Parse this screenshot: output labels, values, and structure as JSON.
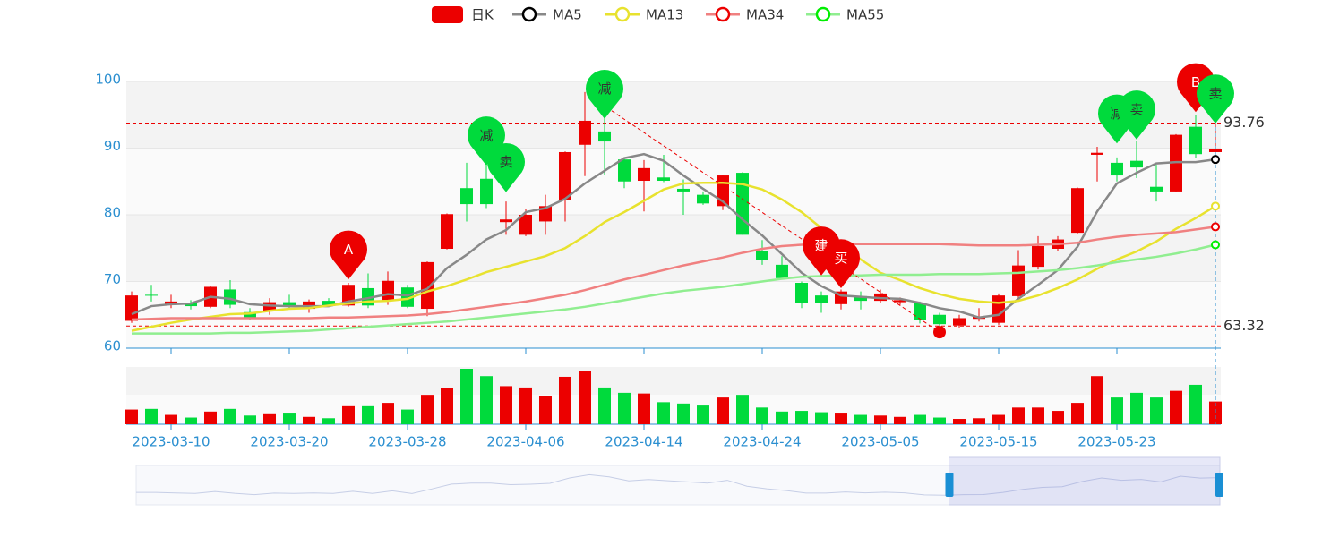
{
  "chart_data": {
    "type": "candlestick",
    "categories": [
      null,
      null,
      "2023-03-10",
      null,
      null,
      null,
      null,
      null,
      "2023-03-20",
      null,
      null,
      null,
      null,
      null,
      "2023-03-28",
      null,
      null,
      null,
      null,
      null,
      "2023-04-06",
      null,
      null,
      null,
      null,
      null,
      "2023-04-14",
      null,
      null,
      null,
      null,
      null,
      "2023-04-24",
      null,
      null,
      null,
      null,
      null,
      "2023-05-05",
      null,
      null,
      null,
      null,
      null,
      "2023-05-15",
      null,
      null,
      null,
      null,
      null,
      "2023-05-23",
      null,
      null,
      null,
      null,
      null
    ],
    "series": [
      {
        "name": "日K",
        "up_color": "#ec0000",
        "down_color": "#00da3c",
        "open": [
          64.1,
          68,
          66.5,
          66.8,
          66.2,
          68.8,
          65.4,
          65.6,
          66.9,
          65.9,
          67.1,
          66.4,
          69,
          67.2,
          69.1,
          65.9,
          74.9,
          84,
          85.4,
          78.9,
          77,
          79,
          82.2,
          90.5,
          92.5,
          88.3,
          85.1,
          85.6,
          83.9,
          83,
          81.3,
          86.3,
          74.6,
          72.5,
          69.8,
          67.9,
          66.6,
          67.8,
          67.1,
          66.9,
          66.8,
          65,
          63.4,
          64.4,
          63.8,
          67.8,
          72.2,
          74.9,
          77.3,
          89,
          87.8,
          88.1,
          84.2,
          83.5,
          93.2,
          89.4
        ],
        "close": [
          67.9,
          67.9,
          67,
          66.3,
          69.2,
          66.5,
          64.5,
          66.9,
          66.4,
          67,
          66.4,
          69.5,
          66.4,
          70.1,
          66.2,
          72.9,
          80.1,
          81.6,
          81.6,
          79.3,
          80,
          81.3,
          89.4,
          94.1,
          91,
          85,
          87,
          85.1,
          83.5,
          81.7,
          85.9,
          77,
          73.2,
          70.5,
          66.8,
          66.8,
          68.5,
          67.1,
          68.2,
          67.2,
          64.2,
          63.6,
          64.5,
          64.7,
          67.9,
          72.4,
          75.3,
          76.3,
          84,
          89.3,
          85.9,
          87.1,
          83.5,
          92,
          89.1,
          89.8
        ],
        "high": [
          68.5,
          69.5,
          68,
          67.2,
          69.3,
          70.2,
          66,
          67.5,
          68,
          67.3,
          67.5,
          69.8,
          71.2,
          71.5,
          69.5,
          73,
          80.2,
          87.8,
          89,
          82,
          80.8,
          83,
          89.5,
          98.4,
          95,
          88.5,
          88.2,
          89,
          85.3,
          83.5,
          86,
          86.4,
          76.2,
          73.8,
          70,
          68.5,
          68.8,
          68.5,
          68.8,
          67.6,
          67,
          65.3,
          65,
          66,
          68.2,
          74.7,
          76.8,
          76.8,
          84.1,
          90.2,
          88.6,
          91,
          87.5,
          92.1,
          95,
          99.2
        ],
        "low": [
          63.8,
          67,
          66,
          65.8,
          66,
          66,
          64.3,
          65,
          66,
          65.3,
          66.2,
          66.2,
          66,
          66.5,
          66,
          64.8,
          74.8,
          79,
          81,
          77,
          76.8,
          77,
          79,
          85.8,
          86,
          84,
          80.5,
          84.9,
          80,
          81.5,
          80.7,
          77,
          72.5,
          70.3,
          66,
          65.3,
          65.8,
          65.8,
          66.8,
          66.5,
          63.7,
          62.4,
          63.1,
          64,
          63.5,
          67.5,
          71.8,
          74.5,
          77.2,
          85,
          85,
          85.5,
          82,
          83.4,
          88.5,
          88.8
        ]
      },
      {
        "name": "MA5",
        "color": "#888888",
        "legend_color": "#000000",
        "values": [
          65.1,
          66.3,
          66.6,
          66.7,
          67.7,
          67.4,
          66.6,
          66.4,
          66.3,
          66.3,
          66.3,
          67.0,
          67.5,
          68.1,
          67.9,
          68.9,
          72.0,
          74.0,
          76.3,
          77.7,
          80.4,
          81.0,
          82.4,
          84.7,
          86.6,
          88.5,
          89.1,
          88.1,
          85.9,
          83.9,
          82.0,
          79.3,
          76.9,
          74.1,
          71.3,
          69.3,
          67.9,
          67.7,
          67.5,
          67.4,
          66.8,
          66.0,
          65.5,
          64.6,
          65.0,
          67.4,
          69.5,
          71.7,
          75.2,
          80.5,
          84.7,
          86.3,
          87.7,
          87.9,
          87.9,
          88.3
        ]
      },
      {
        "name": "MA13",
        "color": "#e8e22e",
        "legend_color": "#e8e22e",
        "values": [
          62.6,
          63.2,
          63.8,
          64.3,
          64.7,
          65.1,
          65.2,
          65.6,
          65.9,
          66.0,
          66.4,
          66.7,
          67.0,
          67.1,
          67.4,
          68.5,
          69.3,
          70.3,
          71.4,
          72.2,
          73.0,
          73.8,
          75.0,
          76.8,
          78.9,
          80.4,
          82.1,
          83.8,
          84.7,
          84.8,
          84.8,
          84.6,
          83.8,
          82.3,
          80.4,
          78.0,
          75.6,
          73.3,
          71.3,
          70.2,
          69.0,
          68.1,
          67.4,
          67.0,
          66.8,
          67.1,
          67.9,
          69.0,
          70.3,
          71.9,
          73.3,
          74.5,
          76.0,
          77.9,
          79.5,
          81.3
        ]
      },
      {
        "name": "MA34",
        "color": "#f08080",
        "legend_color": "#ec0000",
        "values": [
          64.3,
          64.4,
          64.5,
          64.5,
          64.5,
          64.5,
          64.5,
          64.5,
          64.5,
          64.5,
          64.6,
          64.6,
          64.7,
          64.8,
          64.9,
          65.1,
          65.4,
          65.8,
          66.2,
          66.6,
          67.0,
          67.5,
          68.0,
          68.7,
          69.5,
          70.3,
          71.0,
          71.7,
          72.4,
          73.0,
          73.6,
          74.3,
          74.9,
          75.3,
          75.5,
          75.6,
          75.6,
          75.6,
          75.6,
          75.6,
          75.6,
          75.6,
          75.5,
          75.4,
          75.4,
          75.4,
          75.5,
          75.6,
          75.8,
          76.3,
          76.7,
          77.0,
          77.2,
          77.4,
          77.8,
          78.2
        ]
      },
      {
        "name": "MA55",
        "color": "#90ee90",
        "legend_color": "#00ee00",
        "values": [
          62.2,
          62.2,
          62.2,
          62.2,
          62.2,
          62.3,
          62.3,
          62.4,
          62.5,
          62.6,
          62.8,
          63.0,
          63.2,
          63.4,
          63.6,
          63.8,
          64.0,
          64.3,
          64.6,
          64.9,
          65.2,
          65.5,
          65.8,
          66.2,
          66.7,
          67.2,
          67.7,
          68.2,
          68.6,
          68.9,
          69.2,
          69.6,
          70.0,
          70.4,
          70.7,
          70.8,
          70.9,
          70.9,
          71.0,
          71.0,
          71.0,
          71.1,
          71.1,
          71.1,
          71.2,
          71.3,
          71.5,
          71.7,
          72.0,
          72.4,
          72.9,
          73.3,
          73.7,
          74.2,
          74.8,
          75.5
        ]
      }
    ],
    "volume": [
      22,
      23,
      14,
      10,
      19,
      23,
      13,
      15,
      16,
      11,
      9,
      27,
      27,
      32,
      22,
      44,
      54,
      83,
      72,
      57,
      55,
      42,
      71,
      80,
      55,
      47,
      46,
      33,
      31,
      28,
      40,
      44,
      25,
      19,
      20,
      18,
      16,
      14,
      13,
      11,
      14,
      10,
      8,
      9,
      14,
      25,
      25,
      20,
      32,
      72,
      40,
      47,
      40,
      50,
      59,
      34
    ],
    "ylim": [
      60,
      100
    ],
    "yticks": [
      60,
      70,
      80,
      90,
      100
    ],
    "mark_lines": [
      93.76,
      63.32
    ],
    "markers": [
      {
        "label": "A",
        "i": 11,
        "value": 70.3,
        "color": "#ec0000"
      },
      {
        "label": "减",
        "i": 18,
        "value": 87.4,
        "color": "#00da3c"
      },
      {
        "label": "卖",
        "i": 19,
        "value": 83.4,
        "color": "#00da3c"
      },
      {
        "label": "减",
        "i": 24,
        "value": 94.4,
        "color": "#00da3c"
      },
      {
        "label": "建",
        "i": 35,
        "value": 70.9,
        "color": "#ec0000"
      },
      {
        "label": "买",
        "i": 36,
        "value": 69.0,
        "color": "#ec0000"
      },
      {
        "label": "减",
        "i": 50,
        "value": 90.7,
        "color": "#00da3c"
      },
      {
        "label": "卖",
        "i": 51,
        "value": 91.3,
        "color": "#00da3c"
      },
      {
        "label": "B",
        "i": 54,
        "value": 95.4,
        "color": "#ec0000"
      },
      {
        "label": "卖",
        "i": 55,
        "value": 93.7,
        "color": "#00da3c"
      }
    ],
    "trend_line": [
      {
        "i": 24,
        "value": 95.6
      },
      {
        "i": 41,
        "value": 62.4
      }
    ],
    "zoom": {
      "start": 75,
      "end": 100
    }
  }
}
